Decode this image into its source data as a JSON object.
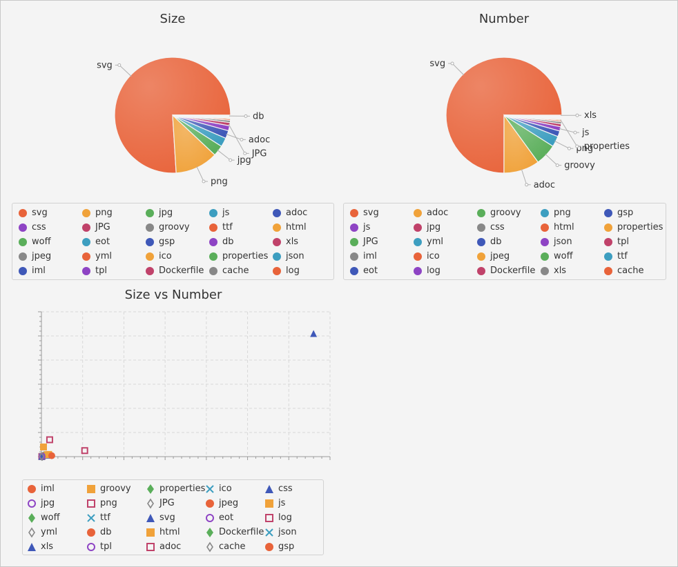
{
  "chart_data": [
    {
      "type": "pie",
      "title": "Size",
      "slices": [
        {
          "label": "svg",
          "value": 76.0,
          "color": "#e8633a"
        },
        {
          "label": "png",
          "value": 12.0,
          "color": "#f0a23a"
        },
        {
          "label": "jpg",
          "value": 3.0,
          "color": "#5aae5a"
        },
        {
          "label": "js",
          "value": 2.5,
          "color": "#3d9ec0"
        },
        {
          "label": "adoc",
          "value": 2.2,
          "color": "#3f58b8"
        },
        {
          "label": "css",
          "value": 1.4,
          "color": "#8e44c4"
        },
        {
          "label": "JPG",
          "value": 0.9,
          "color": "#c0426a"
        },
        {
          "label": "groovy",
          "value": 0.6,
          "color": "#888888"
        },
        {
          "label": "ttf",
          "value": 0.4,
          "color": "#e8633a"
        },
        {
          "label": "html",
          "value": 0.3,
          "color": "#f0a23a"
        },
        {
          "label": "woff",
          "value": 0.2,
          "color": "#5aae5a"
        },
        {
          "label": "eot",
          "value": 0.15,
          "color": "#3d9ec0"
        },
        {
          "label": "gsp",
          "value": 0.12,
          "color": "#3f58b8"
        },
        {
          "label": "db",
          "value": 0.1,
          "color": "#8e44c4"
        },
        {
          "label": "xls",
          "value": 0.03,
          "color": "#c0426a"
        },
        {
          "label": "jpeg",
          "value": 0.03,
          "color": "#888888"
        },
        {
          "label": "yml",
          "value": 0.02,
          "color": "#e8633a"
        },
        {
          "label": "ico",
          "value": 0.02,
          "color": "#f0a23a"
        },
        {
          "label": "properties",
          "value": 0.01,
          "color": "#5aae5a"
        },
        {
          "label": "json",
          "value": 0.01,
          "color": "#3d9ec0"
        },
        {
          "label": "iml",
          "value": 0.01,
          "color": "#3f58b8"
        },
        {
          "label": "tpl",
          "value": 0.01,
          "color": "#8e44c4"
        },
        {
          "label": "Dockerfile",
          "value": 0.005,
          "color": "#c0426a"
        },
        {
          "label": "cache",
          "value": 0.005,
          "color": "#888888"
        },
        {
          "label": "log",
          "value": 0.005,
          "color": "#e8633a"
        }
      ],
      "callouts": [
        "svg",
        "png",
        "jpg",
        "adoc",
        "JPG",
        "db"
      ]
    },
    {
      "type": "pie",
      "title": "Number",
      "slices": [
        {
          "label": "svg",
          "value": 75.0,
          "color": "#e8633a"
        },
        {
          "label": "adoc",
          "value": 10.0,
          "color": "#f0a23a"
        },
        {
          "label": "groovy",
          "value": 6.0,
          "color": "#5aae5a"
        },
        {
          "label": "png",
          "value": 3.0,
          "color": "#3d9ec0"
        },
        {
          "label": "gsp",
          "value": 1.6,
          "color": "#3f58b8"
        },
        {
          "label": "js",
          "value": 1.2,
          "color": "#8e44c4"
        },
        {
          "label": "jpg",
          "value": 0.8,
          "color": "#c0426a"
        },
        {
          "label": "css",
          "value": 0.6,
          "color": "#888888"
        },
        {
          "label": "html",
          "value": 0.4,
          "color": "#e8633a"
        },
        {
          "label": "properties",
          "value": 0.3,
          "color": "#f0a23a"
        },
        {
          "label": "JPG",
          "value": 0.2,
          "color": "#5aae5a"
        },
        {
          "label": "yml",
          "value": 0.15,
          "color": "#3d9ec0"
        },
        {
          "label": "db",
          "value": 0.12,
          "color": "#3f58b8"
        },
        {
          "label": "json",
          "value": 0.1,
          "color": "#8e44c4"
        },
        {
          "label": "tpl",
          "value": 0.08,
          "color": "#c0426a"
        },
        {
          "label": "iml",
          "value": 0.08,
          "color": "#888888"
        },
        {
          "label": "ico",
          "value": 0.07,
          "color": "#e8633a"
        },
        {
          "label": "jpeg",
          "value": 0.06,
          "color": "#f0a23a"
        },
        {
          "label": "woff",
          "value": 0.05,
          "color": "#5aae5a"
        },
        {
          "label": "ttf",
          "value": 0.05,
          "color": "#3d9ec0"
        },
        {
          "label": "eot",
          "value": 0.04,
          "color": "#3f58b8"
        },
        {
          "label": "log",
          "value": 0.04,
          "color": "#8e44c4"
        },
        {
          "label": "Dockerfile",
          "value": 0.03,
          "color": "#c0426a"
        },
        {
          "label": "xls",
          "value": 0.02,
          "color": "#888888"
        },
        {
          "label": "cache",
          "value": 0.02,
          "color": "#e8633a"
        }
      ],
      "callouts": [
        "svg",
        "adoc",
        "groovy",
        "png",
        "js",
        "properties",
        "xls"
      ]
    },
    {
      "type": "scatter",
      "title": "Size vs Number",
      "xlim": [
        0,
        140
      ],
      "ylim": [
        0,
        60
      ],
      "grid": true,
      "series": [
        {
          "name": "iml",
          "symbol": "circle",
          "color": "#e8633a",
          "points": [
            [
              0.5,
              0.3
            ]
          ]
        },
        {
          "name": "groovy",
          "symbol": "square",
          "color": "#f0a23a",
          "points": [
            [
              1.0,
              4.0
            ]
          ]
        },
        {
          "name": "properties",
          "symbol": "diamond",
          "color": "#5aae5a",
          "points": [
            [
              0.6,
              0.2
            ]
          ]
        },
        {
          "name": "ico",
          "symbol": "cross",
          "color": "#3d9ec0",
          "points": [
            [
              0.3,
              0.1
            ]
          ]
        },
        {
          "name": "css",
          "symbol": "triangle",
          "color": "#3f58b8",
          "points": [
            [
              4.0,
              0.6
            ]
          ]
        },
        {
          "name": "jpg",
          "symbol": "circle-open",
          "color": "#8e44c4",
          "points": [
            [
              2.5,
              0.8
            ]
          ]
        },
        {
          "name": "png",
          "symbol": "square-open",
          "color": "#c0426a",
          "points": [
            [
              4.0,
              7.0
            ]
          ]
        },
        {
          "name": "JPG",
          "symbol": "diamond-open",
          "color": "#888888",
          "points": [
            [
              1.2,
              0.5
            ]
          ]
        },
        {
          "name": "jpeg",
          "symbol": "circle",
          "color": "#e8633a",
          "points": [
            [
              0.4,
              0.1
            ]
          ]
        },
        {
          "name": "js",
          "symbol": "square",
          "color": "#f0a23a",
          "points": [
            [
              3.5,
              0.9
            ]
          ]
        },
        {
          "name": "woff",
          "symbol": "diamond",
          "color": "#5aae5a",
          "points": [
            [
              1.0,
              0.2
            ]
          ]
        },
        {
          "name": "ttf",
          "symbol": "cross",
          "color": "#3d9ec0",
          "points": [
            [
              1.0,
              0.3
            ]
          ]
        },
        {
          "name": "svg",
          "symbol": "triangle",
          "color": "#3f58b8",
          "points": [
            [
              132.0,
              51.0
            ]
          ]
        },
        {
          "name": "eot",
          "symbol": "circle-open",
          "color": "#8e44c4",
          "points": [
            [
              1.0,
              0.2
            ]
          ]
        },
        {
          "name": "log",
          "symbol": "square-open",
          "color": "#c0426a",
          "points": [
            [
              0.2,
              0.05
            ]
          ]
        },
        {
          "name": "yml",
          "symbol": "diamond-open",
          "color": "#888888",
          "points": [
            [
              0.5,
              0.1
            ]
          ]
        },
        {
          "name": "db",
          "symbol": "circle",
          "color": "#e8633a",
          "points": [
            [
              0.6,
              0.2
            ]
          ]
        },
        {
          "name": "html",
          "symbol": "square",
          "color": "#f0a23a",
          "points": [
            [
              3.0,
              0.8
            ]
          ]
        },
        {
          "name": "Dockerfile",
          "symbol": "diamond",
          "color": "#5aae5a",
          "points": [
            [
              0.1,
              0.05
            ]
          ]
        },
        {
          "name": "json",
          "symbol": "cross",
          "color": "#3d9ec0",
          "points": [
            [
              0.3,
              0.1
            ]
          ]
        },
        {
          "name": "xls",
          "symbol": "triangle",
          "color": "#3f58b8",
          "points": [
            [
              0.1,
              0.1
            ]
          ]
        },
        {
          "name": "tpl",
          "symbol": "circle-open",
          "color": "#8e44c4",
          "points": [
            [
              0.3,
              0.1
            ]
          ]
        },
        {
          "name": "adoc",
          "symbol": "square-open",
          "color": "#c0426a",
          "points": [
            [
              21.0,
              2.5
            ]
          ]
        },
        {
          "name": "cache",
          "symbol": "diamond-open",
          "color": "#888888",
          "points": [
            [
              0.1,
              0.05
            ]
          ]
        },
        {
          "name": "gsp",
          "symbol": "circle",
          "color": "#e8633a",
          "points": [
            [
              5.0,
              0.4
            ]
          ]
        }
      ]
    }
  ]
}
